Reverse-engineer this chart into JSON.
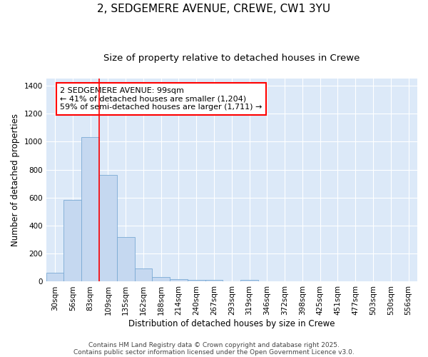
{
  "title_line1": "2, SEDGEMERE AVENUE, CREWE, CW1 3YU",
  "title_line2": "Size of property relative to detached houses in Crewe",
  "xlabel": "Distribution of detached houses by size in Crewe",
  "ylabel": "Number of detached properties",
  "categories": [
    "30sqm",
    "56sqm",
    "83sqm",
    "109sqm",
    "135sqm",
    "162sqm",
    "188sqm",
    "214sqm",
    "240sqm",
    "267sqm",
    "293sqm",
    "319sqm",
    "346sqm",
    "372sqm",
    "398sqm",
    "425sqm",
    "451sqm",
    "477sqm",
    "503sqm",
    "530sqm",
    "556sqm"
  ],
  "values": [
    65,
    585,
    1030,
    760,
    320,
    95,
    35,
    20,
    13,
    10,
    0,
    13,
    0,
    0,
    0,
    0,
    0,
    0,
    0,
    0,
    0
  ],
  "bar_color": "#c5d8f0",
  "bar_edge_color": "#7aaad4",
  "vline_x": 2.5,
  "vline_color": "red",
  "annotation_text": "2 SEDGEMERE AVENUE: 99sqm\n← 41% of detached houses are smaller (1,204)\n59% of semi-detached houses are larger (1,711) →",
  "annotation_box_color": "white",
  "annotation_box_edge_color": "red",
  "ylim": [
    0,
    1450
  ],
  "background_color": "#dce9f8",
  "plot_bg_color": "#dce9f8",
  "grid_color": "white",
  "footer_line1": "Contains HM Land Registry data © Crown copyright and database right 2025.",
  "footer_line2": "Contains public sector information licensed under the Open Government Licence v3.0.",
  "title_fontsize": 11,
  "subtitle_fontsize": 9.5,
  "axis_label_fontsize": 8.5,
  "tick_fontsize": 7.5,
  "annotation_fontsize": 8,
  "footer_fontsize": 6.5
}
